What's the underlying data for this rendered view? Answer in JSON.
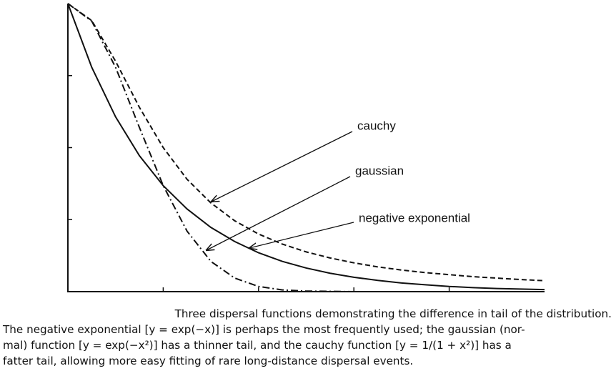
{
  "chart_data": {
    "type": "line",
    "x": [
      0,
      0.25,
      0.5,
      0.75,
      1,
      1.25,
      1.5,
      1.75,
      2,
      2.25,
      2.5,
      2.75,
      3,
      3.25,
      3.5,
      3.75,
      4,
      4.25,
      4.5,
      4.75,
      5
    ],
    "xlim": [
      0,
      5
    ],
    "ylim": [
      0,
      1
    ],
    "xticks": [
      1,
      2,
      3,
      4
    ],
    "yticks": [
      0.25,
      0.5,
      0.75
    ],
    "series": [
      {
        "name": "cauchy",
        "color": "#111111",
        "dash": "7 4",
        "values": [
          1,
          0.941,
          0.8,
          0.64,
          0.5,
          0.39,
          0.308,
          0.246,
          0.2,
          0.165,
          0.138,
          0.117,
          0.1,
          0.086,
          0.075,
          0.066,
          0.059,
          0.052,
          0.047,
          0.042,
          0.038
        ]
      },
      {
        "name": "gaussian",
        "color": "#111111",
        "dash": "10 4 2 4",
        "values": [
          1,
          0.939,
          0.779,
          0.57,
          0.368,
          0.21,
          0.105,
          0.047,
          0.018,
          0.006,
          0.002,
          0.001,
          0,
          0,
          0,
          0,
          0,
          0,
          0,
          0,
          0
        ]
      },
      {
        "name": "negative exponential",
        "color": "#111111",
        "dash": "none",
        "values": [
          1,
          0.779,
          0.607,
          0.472,
          0.368,
          0.287,
          0.223,
          0.174,
          0.135,
          0.105,
          0.082,
          0.064,
          0.05,
          0.039,
          0.03,
          0.024,
          0.018,
          0.014,
          0.011,
          0.009,
          0.007
        ]
      }
    ]
  },
  "caption_lines": [
    "Three dispersal functions demonstrating the difference in tail of the distribution.",
    "The negative exponential [y = exp(−x)] is perhaps the most frequently used; the gaussian (nor-",
    "mal) function [y = exp(−x²)] has a thinner tail, and the cauchy function [y = 1/(1 + x²)] has a",
    "fatter tail, allowing more easy fitting of rare long-distance dispersal events."
  ]
}
